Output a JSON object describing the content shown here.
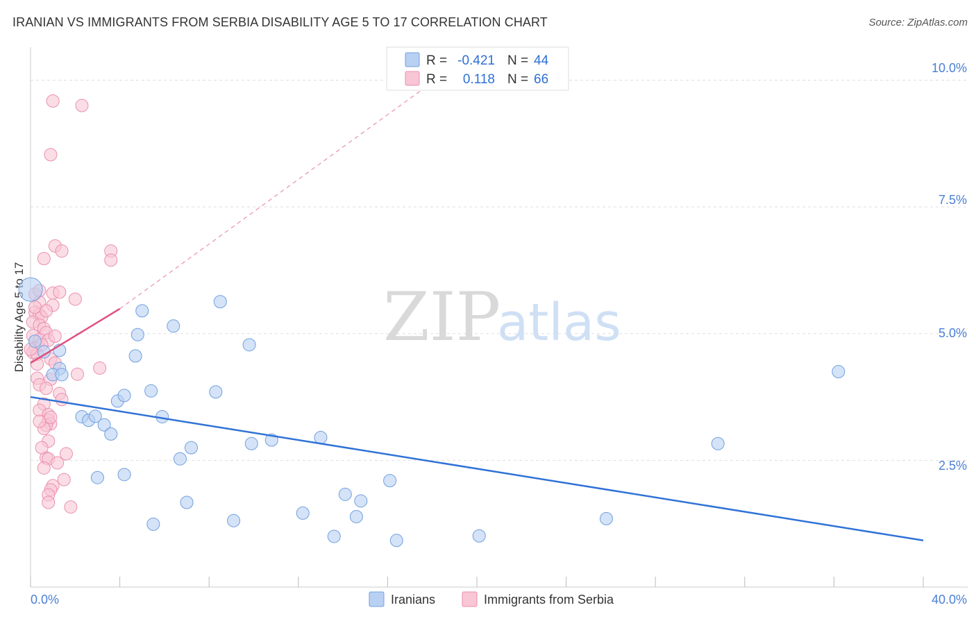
{
  "header": {
    "title": "IRANIAN VS IMMIGRANTS FROM SERBIA DISABILITY AGE 5 TO 17 CORRELATION CHART",
    "source": "Source: ZipAtlas.com"
  },
  "watermark": {
    "zip": "ZIP",
    "atlas": "atlas"
  },
  "legend": {
    "rows": [
      {
        "r_label": "R =",
        "r_value": "-0.421",
        "n_label": "N =",
        "n_value": "44"
      },
      {
        "r_label": "R =",
        "r_value": "0.118",
        "n_label": "N =",
        "n_value": "66"
      }
    ]
  },
  "bottom_legend": {
    "items": [
      "Iranians",
      "Immigrants from Serbia"
    ]
  },
  "colors": {
    "blue_fill": "#b8d0f2",
    "blue_stroke": "#6f9fe0",
    "blue_line": "#2f72d6",
    "pink_fill": "#f8c6d5",
    "pink_stroke": "#ea8fae",
    "pink_line": "#e0507e",
    "grid": "#dddddd",
    "axis_text": "#4a7fd6"
  },
  "chart_data": {
    "type": "scatter",
    "title": "IRANIAN VS IMMIGRANTS FROM SERBIA DISABILITY AGE 5 TO 17 CORRELATION CHART",
    "xlabel": "",
    "ylabel": "Disability Age 5 to 17",
    "xlim": [
      0,
      40
    ],
    "ylim": [
      0,
      10.5
    ],
    "y_ticks": [
      2.5,
      5.0,
      7.5,
      10.0
    ],
    "y_tick_labels": [
      "2.5%",
      "5.0%",
      "7.5%",
      "10.0%"
    ],
    "x_tick_labels": [
      "0.0%",
      "40.0%"
    ],
    "series": [
      {
        "name": "Iranians",
        "color": "#6f9fe0",
        "R": -0.421,
        "N": 44,
        "trend": {
          "x": [
            0,
            40
          ],
          "y": [
            3.75,
            0.92
          ]
        },
        "points": [
          [
            0.0,
            5.87
          ],
          [
            0.2,
            4.85
          ],
          [
            0.6,
            4.64
          ],
          [
            1.3,
            4.67
          ],
          [
            1.3,
            4.31
          ],
          [
            1.0,
            4.19
          ],
          [
            1.4,
            4.19
          ],
          [
            4.8,
            4.98
          ],
          [
            4.7,
            4.56
          ],
          [
            6.4,
            5.15
          ],
          [
            8.5,
            5.63
          ],
          [
            9.8,
            4.78
          ],
          [
            3.9,
            3.67
          ],
          [
            4.2,
            3.78
          ],
          [
            5.4,
            3.87
          ],
          [
            8.3,
            3.85
          ],
          [
            2.3,
            3.36
          ],
          [
            2.6,
            3.29
          ],
          [
            2.9,
            3.37
          ],
          [
            3.3,
            3.2
          ],
          [
            3.6,
            3.02
          ],
          [
            5.9,
            3.36
          ],
          [
            7.2,
            2.75
          ],
          [
            6.7,
            2.53
          ],
          [
            9.9,
            2.83
          ],
          [
            10.8,
            2.9
          ],
          [
            13.0,
            2.95
          ],
          [
            30.8,
            2.83
          ],
          [
            36.2,
            4.25
          ],
          [
            3.0,
            2.16
          ],
          [
            4.2,
            2.22
          ],
          [
            16.1,
            2.1
          ],
          [
            14.1,
            1.83
          ],
          [
            14.8,
            1.7
          ],
          [
            7.0,
            1.67
          ],
          [
            12.2,
            1.46
          ],
          [
            14.6,
            1.39
          ],
          [
            9.1,
            1.31
          ],
          [
            5.5,
            1.24
          ],
          [
            25.8,
            1.35
          ],
          [
            13.6,
            1.0
          ],
          [
            16.4,
            0.92
          ],
          [
            20.1,
            1.01
          ],
          [
            5.0,
            5.45
          ]
        ]
      },
      {
        "name": "Immigrants from Serbia",
        "color": "#ea8fae",
        "R": 0.118,
        "N": 66,
        "trend": {
          "x": [
            0,
            4.0
          ],
          "y": [
            4.42,
            5.49
          ]
        },
        "trend_extension": {
          "x": [
            4.0,
            19.7
          ],
          "y": [
            5.49,
            10.5
          ]
        },
        "points": [
          [
            1.0,
            9.59
          ],
          [
            2.3,
            9.5
          ],
          [
            0.9,
            8.53
          ],
          [
            1.1,
            6.73
          ],
          [
            1.4,
            6.63
          ],
          [
            0.6,
            6.48
          ],
          [
            3.6,
            6.63
          ],
          [
            3.6,
            6.45
          ],
          [
            0.2,
            5.78
          ],
          [
            0.4,
            5.85
          ],
          [
            1.0,
            5.8
          ],
          [
            1.3,
            5.82
          ],
          [
            2.0,
            5.68
          ],
          [
            0.4,
            5.62
          ],
          [
            1.0,
            5.56
          ],
          [
            0.2,
            5.42
          ],
          [
            0.4,
            5.38
          ],
          [
            0.5,
            5.33
          ],
          [
            0.1,
            5.23
          ],
          [
            0.4,
            5.17
          ],
          [
            0.6,
            5.1
          ],
          [
            0.7,
            5.02
          ],
          [
            0.1,
            4.96
          ],
          [
            0.4,
            4.88
          ],
          [
            0.8,
            4.87
          ],
          [
            0.2,
            4.71
          ],
          [
            0.1,
            4.63
          ],
          [
            0.3,
            4.59
          ],
          [
            0.9,
            4.5
          ],
          [
            1.1,
            4.42
          ],
          [
            0.3,
            4.12
          ],
          [
            0.9,
            4.1
          ],
          [
            2.1,
            4.2
          ],
          [
            3.1,
            4.32
          ],
          [
            0.4,
            3.99
          ],
          [
            0.7,
            3.92
          ],
          [
            1.3,
            3.82
          ],
          [
            1.4,
            3.7
          ],
          [
            0.6,
            3.61
          ],
          [
            0.4,
            3.49
          ],
          [
            0.8,
            3.4
          ],
          [
            0.8,
            3.29
          ],
          [
            0.9,
            3.22
          ],
          [
            0.7,
            3.19
          ],
          [
            0.6,
            3.13
          ],
          [
            0.8,
            2.88
          ],
          [
            1.6,
            2.63
          ],
          [
            0.7,
            2.55
          ],
          [
            0.8,
            2.53
          ],
          [
            0.6,
            2.35
          ],
          [
            1.5,
            2.12
          ],
          [
            1.0,
            2.0
          ],
          [
            0.9,
            1.92
          ],
          [
            0.8,
            1.82
          ],
          [
            0.8,
            1.67
          ],
          [
            1.8,
            1.58
          ],
          [
            0.0,
            4.69
          ],
          [
            0.5,
            4.78
          ],
          [
            0.2,
            5.52
          ],
          [
            1.1,
            4.95
          ],
          [
            0.3,
            4.4
          ],
          [
            0.7,
            5.45
          ],
          [
            0.9,
            3.35
          ],
          [
            0.4,
            3.27
          ],
          [
            1.2,
            2.45
          ],
          [
            0.5,
            2.75
          ]
        ]
      }
    ]
  }
}
